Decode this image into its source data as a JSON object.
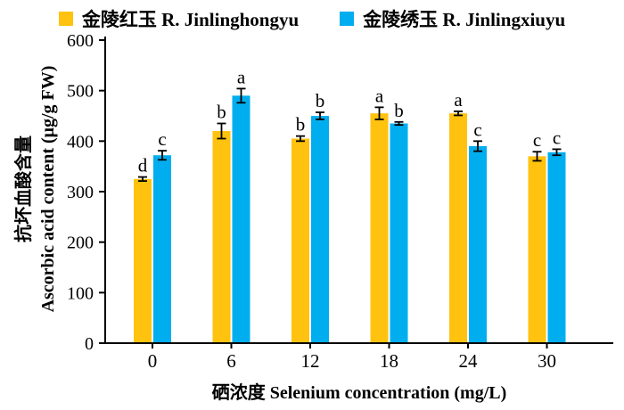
{
  "figure": {
    "background": "#ffffff",
    "axis_color": "#000000"
  },
  "legend": {
    "position": "top",
    "items": [
      {
        "label": "金陵红玉 R. Jinlinghongyu",
        "color": "#FFC20E"
      },
      {
        "label": "金陵绣玉 R. Jinlingxiuyu",
        "color": "#00AEEF"
      }
    ]
  },
  "axes": {
    "xlabel": "硒浓度 Selenium concentration (mg/L)",
    "ylabel_zh": "抗坏血酸含量",
    "ylabel_en": "Ascorbic acid content (μg/g FW)"
  },
  "chart_data": {
    "type": "bar",
    "title": "",
    "categories": [
      "0",
      "6",
      "12",
      "18",
      "24",
      "30"
    ],
    "series": [
      {
        "name": "金陵红玉 R. Jinlinghongyu",
        "color": "#FFC20E",
        "values": [
          325,
          420,
          405,
          455,
          455,
          370
        ],
        "errors": [
          4,
          15,
          5,
          12,
          4,
          9
        ],
        "sig_letters": [
          "d",
          "b",
          "b",
          "a",
          "a",
          "c"
        ]
      },
      {
        "name": "金陵绣玉 R. Jinlingxiuyu",
        "color": "#00AEEF",
        "values": [
          372,
          490,
          450,
          435,
          390,
          378
        ],
        "errors": [
          9,
          14,
          7,
          3,
          10,
          6
        ],
        "sig_letters": [
          "c",
          "a",
          "b",
          "b",
          "c",
          "c"
        ]
      }
    ],
    "xlabel": "硒浓度 Selenium concentration (mg/L)",
    "ylabel": "抗坏血酸含量 Ascorbic acid content (μg/g FW)",
    "ylim": [
      0,
      600
    ],
    "yticks": [
      0,
      100,
      200,
      300,
      400,
      500,
      600
    ],
    "grid": false,
    "legend_position": "top",
    "error_bar_color": "#000000"
  }
}
